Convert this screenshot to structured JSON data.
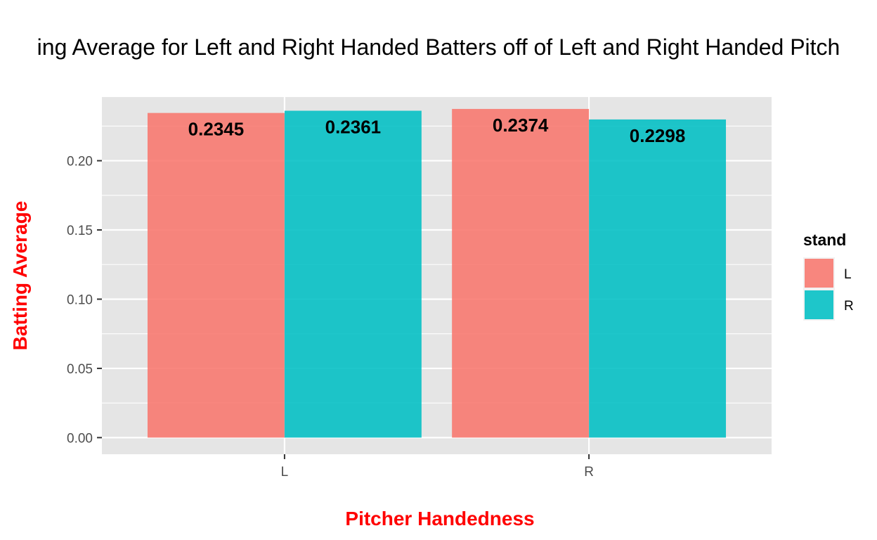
{
  "chart_data": {
    "type": "bar",
    "title": "ing Average for Left and Right Handed Batters off of Left and Right Handed Pitch",
    "xlabel": "Pitcher Handedness",
    "ylabel": "Batting Average",
    "categories": [
      "L",
      "R"
    ],
    "series": [
      {
        "name": "L",
        "color": "#F8766D",
        "values": [
          0.2345,
          0.2374
        ]
      },
      {
        "name": "R",
        "color": "#00BFC4",
        "values": [
          0.2361,
          0.2298
        ]
      }
    ],
    "data_labels": [
      [
        "0.2345",
        "0.2374"
      ],
      [
        "0.2361",
        "0.2298"
      ]
    ],
    "ylim": [
      -0.012,
      0.246
    ],
    "yticks": [
      0.0,
      0.05,
      0.1,
      0.15,
      0.2
    ],
    "ytick_labels": [
      "0.00",
      "0.05",
      "0.10",
      "0.15",
      "0.20"
    ],
    "legend": {
      "title": "stand",
      "position": "right"
    },
    "grid": true,
    "panel_background": "#E5E5E5",
    "axis_title_color": "#FF0000"
  }
}
